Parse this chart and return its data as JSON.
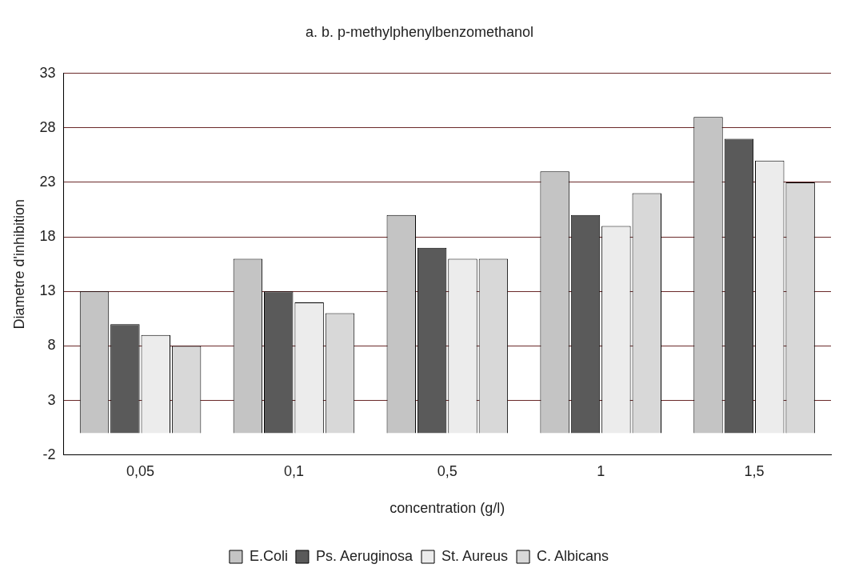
{
  "chart_data": {
    "type": "bar",
    "title": "a. b. p-methylphenylbenzomethanol",
    "xlabel": "concentration (g/l)",
    "ylabel": "Diametre d'inhibition",
    "categories": [
      "0,05",
      "0,1",
      "0,5",
      "1",
      "1,5"
    ],
    "series": [
      {
        "name": "E.Coli",
        "color": "#c4c4c4",
        "values": [
          13,
          16,
          20,
          24,
          29
        ]
      },
      {
        "name": "Ps. Aeruginosa",
        "color": "#5a5a5a",
        "values": [
          10,
          13,
          17,
          20,
          27
        ]
      },
      {
        "name": "St. Aureus",
        "color": "#ececec",
        "values": [
          9,
          12,
          16,
          19,
          25
        ]
      },
      {
        "name": "C. Albicans",
        "color": "#d8d8d8",
        "values": [
          8,
          11,
          16,
          22,
          23
        ]
      }
    ],
    "ylim": [
      -2,
      33
    ],
    "yticks": [
      -2,
      3,
      8,
      13,
      18,
      23,
      28,
      33
    ],
    "grid": "y",
    "legend": "bottom"
  }
}
